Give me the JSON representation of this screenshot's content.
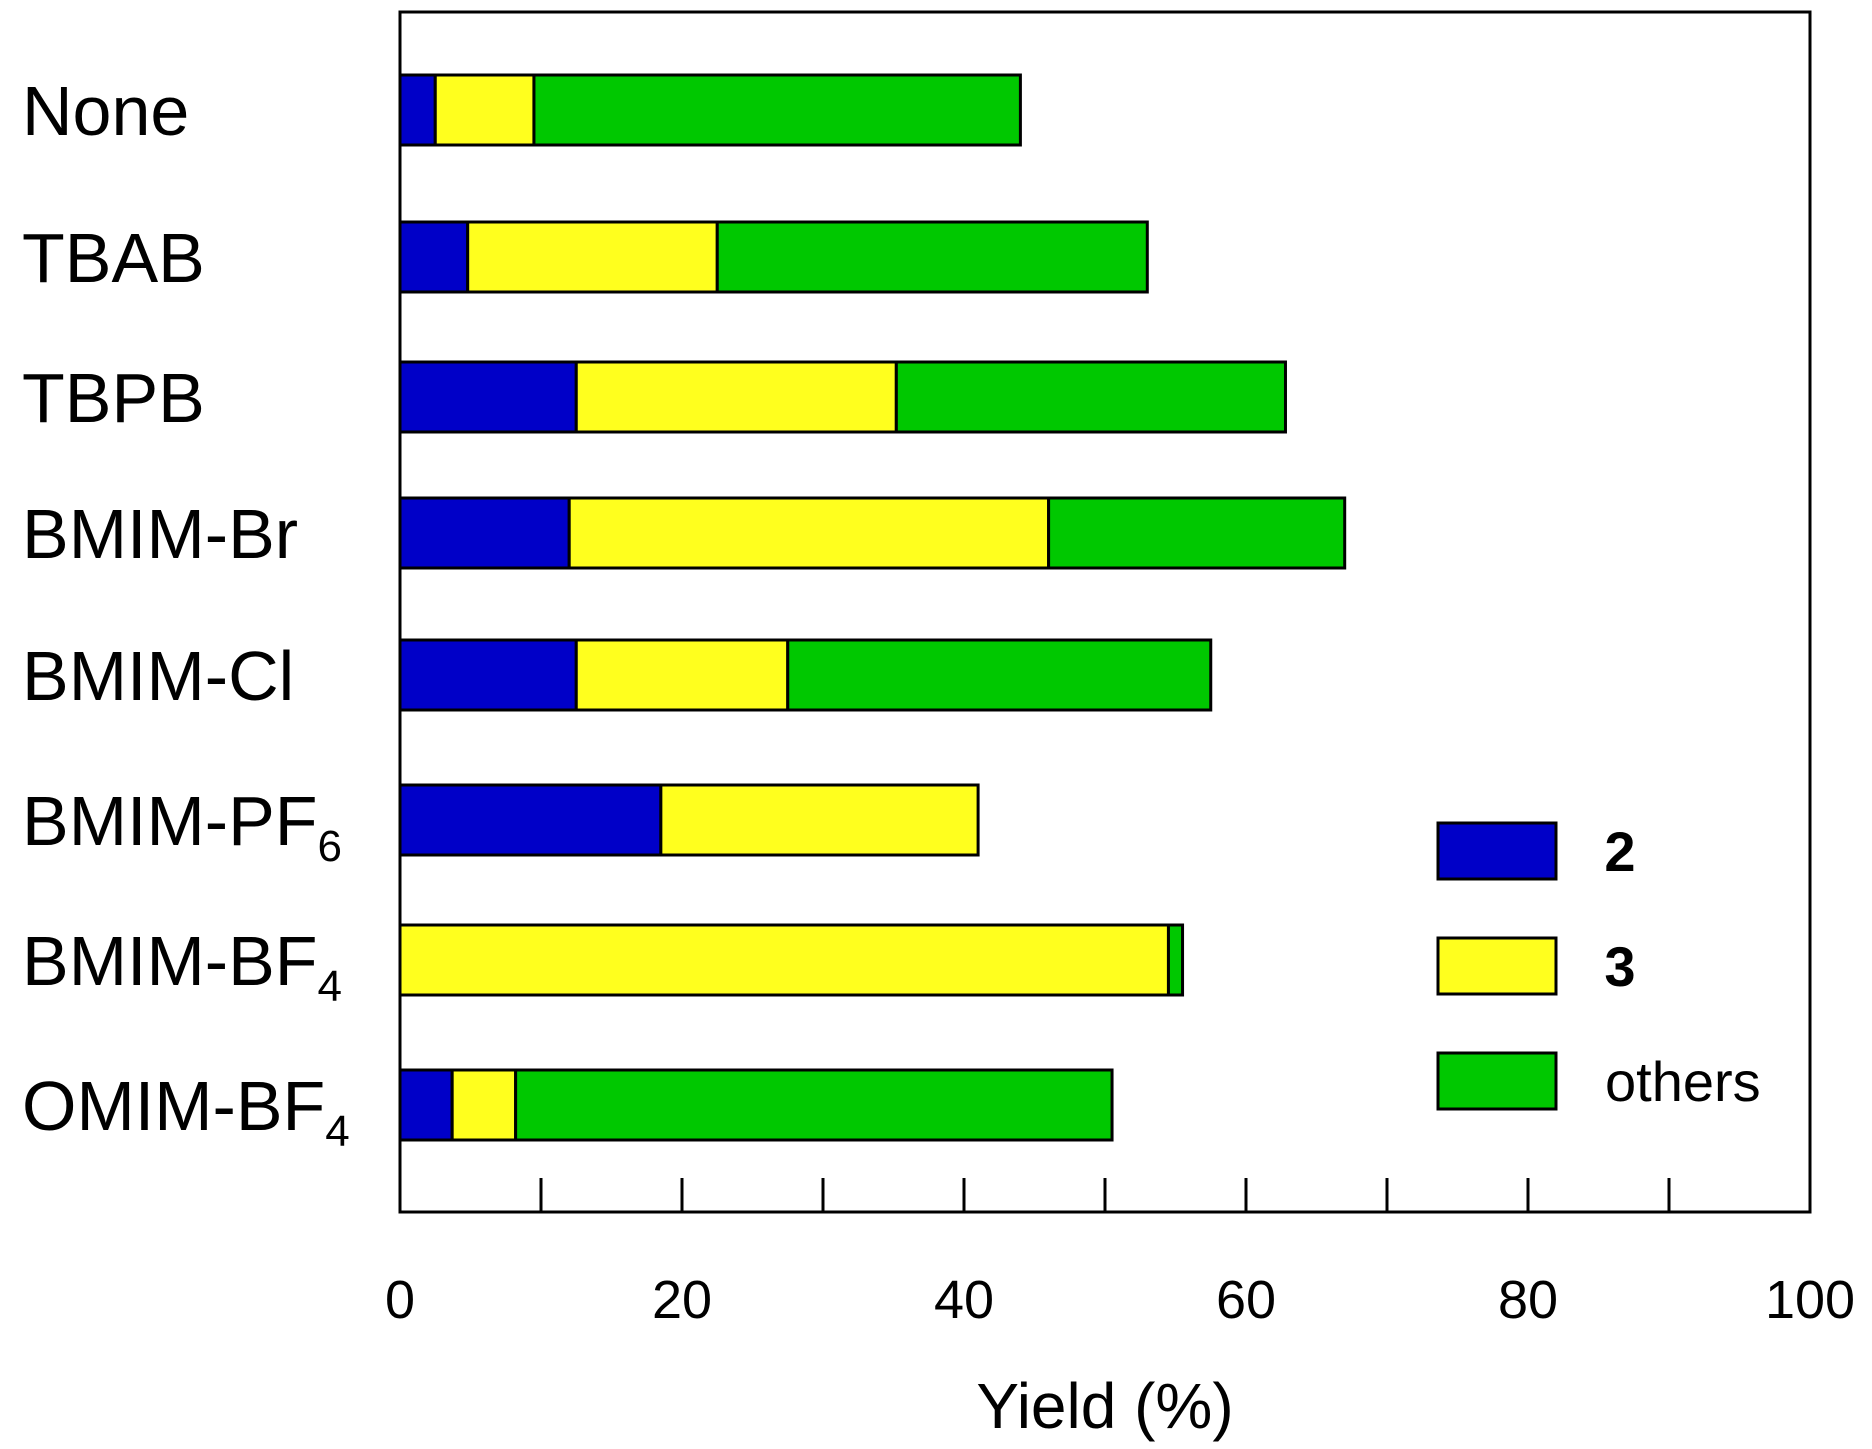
{
  "chart_data": {
    "type": "bar",
    "orientation": "horizontal",
    "stacked": true,
    "title": "",
    "xlabel": "Yield (%)",
    "ylabel": "",
    "xlim": [
      0,
      100
    ],
    "xticks": [
      0,
      20,
      40,
      60,
      80,
      100
    ],
    "xtick_labels": [
      "0",
      "20",
      "40",
      "60",
      "80",
      "100"
    ],
    "minor_tick_step": 10,
    "grid": false,
    "categories": [
      "None",
      "TBAB",
      "TBPB",
      "BMIM-Br",
      "BMIM-Cl",
      "BMIM-PF",
      "BMIM-BF",
      "OMIM-BF"
    ],
    "category_subscripts": [
      "",
      "",
      "",
      "",
      "",
      "6",
      "4",
      "4"
    ],
    "series": [
      {
        "name": "2",
        "color": "#0000C8",
        "values": [
          2.5,
          4.8,
          12.5,
          12.0,
          12.5,
          18.5,
          0.0,
          3.7
        ]
      },
      {
        "name": "3",
        "color": "#FFFF1E",
        "values": [
          7.0,
          17.7,
          22.7,
          34.0,
          15.0,
          22.5,
          54.5,
          4.5
        ]
      },
      {
        "name": "others",
        "color": "#00C800",
        "values": [
          34.5,
          30.5,
          27.6,
          21.0,
          30.0,
          0.0,
          1.0,
          42.3
        ]
      }
    ],
    "legend": {
      "position": "bottom-right",
      "entries": [
        "2",
        "3",
        "others"
      ],
      "bold_entries": [
        "2",
        "3"
      ]
    }
  }
}
